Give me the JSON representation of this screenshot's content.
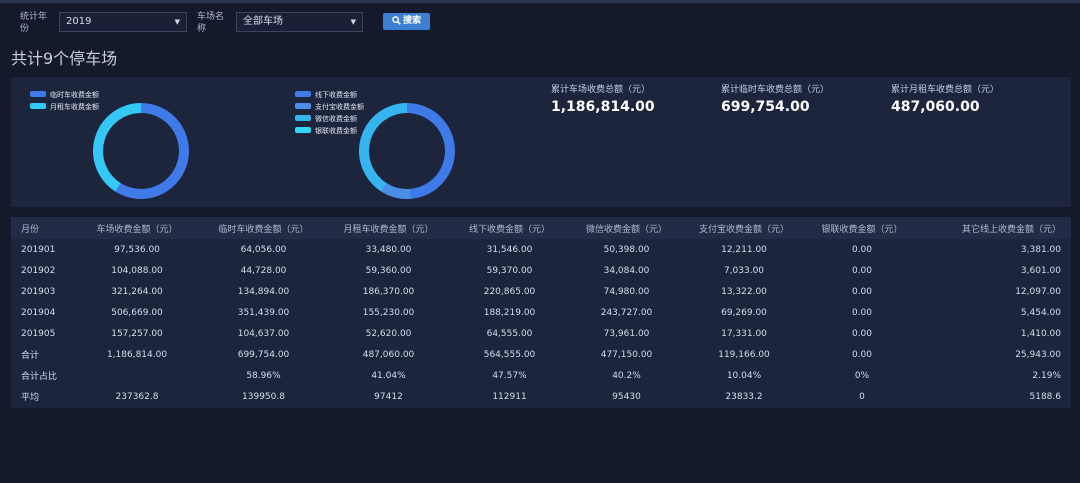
{
  "filters": {
    "year_label": "统计年份",
    "year_value": "2019",
    "lot_label": "车场名称",
    "lot_value": "全部车场",
    "search_label": "搜索"
  },
  "page_title": "共计9个停车场",
  "chart1": {
    "legend": [
      {
        "name": "临时车收费金额",
        "color": "#3f7be8"
      },
      {
        "name": "月租车收费金额",
        "color": "#33c8f5"
      }
    ]
  },
  "chart2": {
    "legend": [
      {
        "name": "线下收费金额",
        "color": "#3f7be8"
      },
      {
        "name": "支付宝收费金额",
        "color": "#4a8ee8"
      },
      {
        "name": "微信收费金额",
        "color": "#36b4ef"
      },
      {
        "name": "银联收费金额",
        "color": "#33d6f7"
      }
    ]
  },
  "chart_data": [
    {
      "type": "pie",
      "categories": [
        "临时车收费金额",
        "月租车收费金额"
      ],
      "values": [
        699754.0,
        487060.0
      ],
      "colors": [
        "#3f7be8",
        "#33c8f5"
      ],
      "title": "",
      "legend_placement": "top-left"
    },
    {
      "type": "pie",
      "categories": [
        "线下收费金额",
        "支付宝收费金额",
        "微信收费金额",
        "银联收费金额"
      ],
      "values": [
        564555.0,
        119166.0,
        477150.0,
        0.0
      ],
      "colors": [
        "#3f7be8",
        "#4a8ee8",
        "#36b4ef",
        "#33d6f7"
      ],
      "title": "",
      "legend_placement": "top-left"
    }
  ],
  "kpis": [
    {
      "label": "累计车场收费总额（元）",
      "value": "1,186,814.00"
    },
    {
      "label": "累计临时车收费总额（元）",
      "value": "699,754.00"
    },
    {
      "label": "累计月租车收费总额（元）",
      "value": "487,060.00"
    }
  ],
  "table": {
    "headers": [
      "月份",
      "车场收费金额（元）",
      "临时车收费金额（元）",
      "月租车收费金额（元）",
      "线下收费金额（元）",
      "微信收费金额（元）",
      "支付宝收费金额（元）",
      "银联收费金额（元）",
      "其它线上收费金额（元）"
    ],
    "rows": [
      [
        "201901",
        "97,536.00",
        "64,056.00",
        "33,480.00",
        "31,546.00",
        "50,398.00",
        "12,211.00",
        "0.00",
        "3,381.00"
      ],
      [
        "201902",
        "104,088.00",
        "44,728.00",
        "59,360.00",
        "59,370.00",
        "34,084.00",
        "7,033.00",
        "0.00",
        "3,601.00"
      ],
      [
        "201903",
        "321,264.00",
        "134,894.00",
        "186,370.00",
        "220,865.00",
        "74,980.00",
        "13,322.00",
        "0.00",
        "12,097.00"
      ],
      [
        "201904",
        "506,669.00",
        "351,439.00",
        "155,230.00",
        "188,219.00",
        "243,727.00",
        "69,269.00",
        "0.00",
        "5,454.00"
      ],
      [
        "201905",
        "157,257.00",
        "104,637.00",
        "52,620.00",
        "64,555.00",
        "73,961.00",
        "17,331.00",
        "0.00",
        "1,410.00"
      ],
      [
        "合计",
        "1,186,814.00",
        "699,754.00",
        "487,060.00",
        "564,555.00",
        "477,150.00",
        "119,166.00",
        "0.00",
        "25,943.00"
      ],
      [
        "合计占比",
        "",
        "58.96%",
        "41.04%",
        "47.57%",
        "40.2%",
        "10.04%",
        "0%",
        "2.19%"
      ],
      [
        "平均",
        "237362.8",
        "139950.8",
        "97412",
        "112911",
        "95430",
        "23833.2",
        "0",
        "5188.6"
      ]
    ]
  }
}
